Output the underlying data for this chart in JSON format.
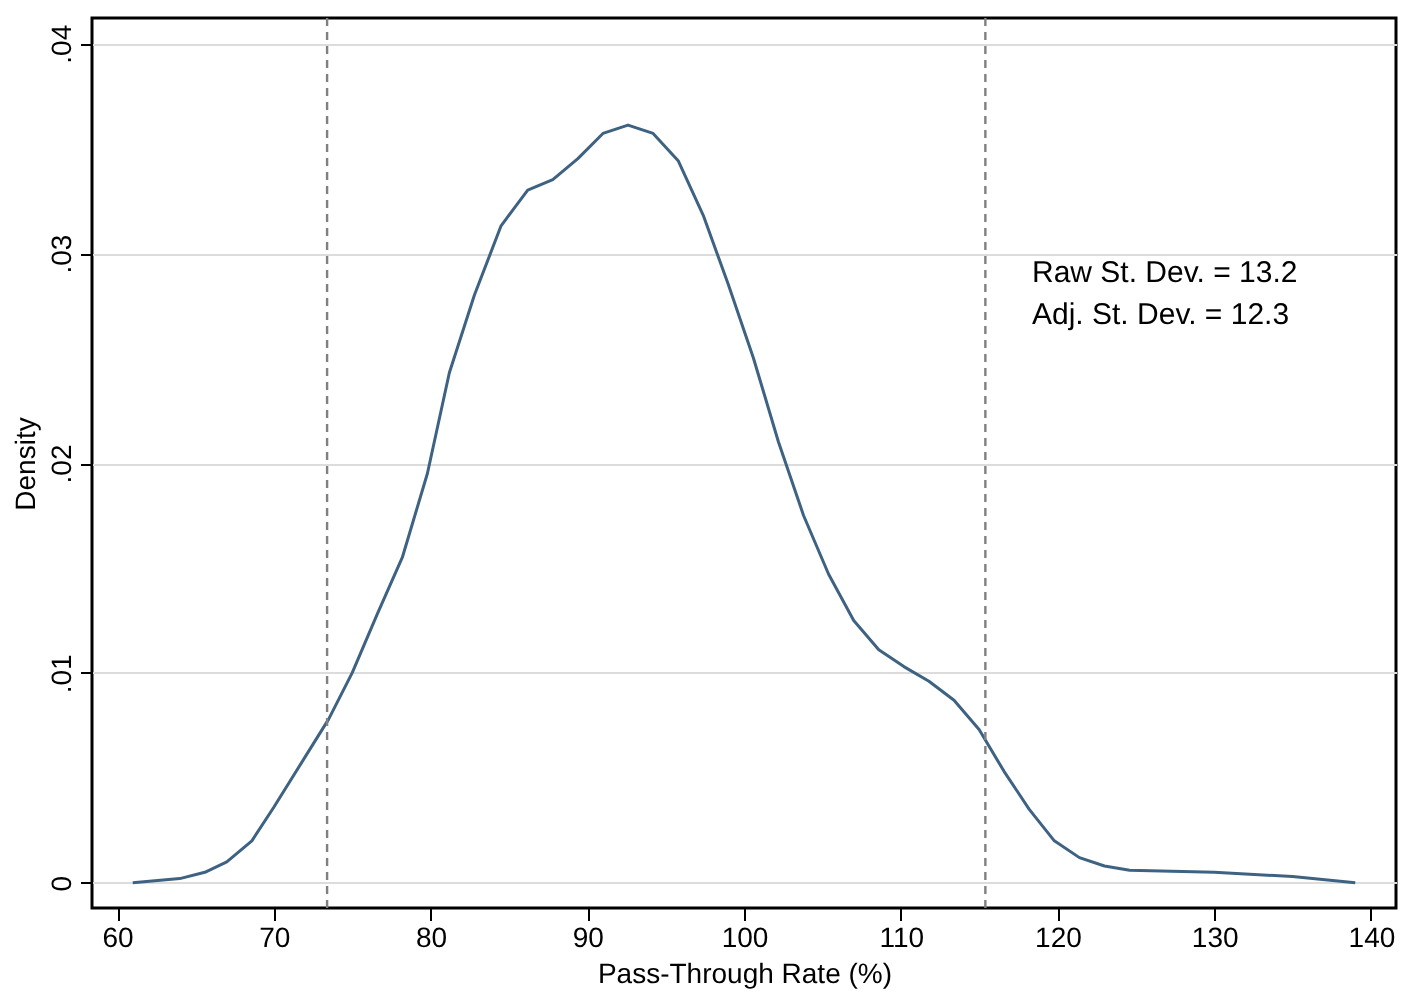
{
  "chart_data": {
    "type": "line",
    "xlabel": "Pass-Through Rate (%)",
    "ylabel": "Density",
    "x": [
      61,
      64,
      65.6,
      67,
      68.6,
      70,
      72,
      73.5,
      75,
      76.6,
      78.2,
      79.8,
      81.2,
      82.8,
      84.5,
      86.2,
      87.8,
      89.4,
      91,
      92.6,
      94.2,
      95.8,
      97.4,
      99,
      100.6,
      102.2,
      103.8,
      105.4,
      107,
      108.6,
      110.2,
      111.8,
      113.4,
      115,
      116.6,
      118.2,
      119.8,
      121.4,
      123,
      124.6,
      130,
      135,
      139
    ],
    "series": [
      {
        "color": "#3e6282",
        "values": [
          0,
          0.0002,
          0.0005,
          0.001,
          0.002,
          0.0036,
          0.006,
          0.0078,
          0.01,
          0.0128,
          0.0155,
          0.0195,
          0.0243,
          0.028,
          0.0313,
          0.033,
          0.0335,
          0.0345,
          0.0357,
          0.0361,
          0.0357,
          0.0344,
          0.0318,
          0.0285,
          0.025,
          0.021,
          0.0175,
          0.0147,
          0.0125,
          0.0111,
          0.0103,
          0.0096,
          0.0087,
          0.0073,
          0.0053,
          0.0035,
          0.002,
          0.0012,
          0.0008,
          0.0006,
          0.0005,
          0.0003,
          0
        ]
      }
    ],
    "xlim": [
      58.4,
      141.6
    ],
    "xticks": [
      60,
      70,
      80,
      90,
      100,
      110,
      120,
      130,
      140
    ],
    "ylim": [
      -0.0012,
      0.0412
    ],
    "yticks": [
      {
        "value": 0,
        "label": "0"
      },
      {
        "value": 0.01,
        "label": ".01"
      },
      {
        "value": 0.02,
        "label": ".02"
      },
      {
        "value": 0.03,
        "label": ".03"
      },
      {
        "value": 0.04,
        "label": ".04"
      }
    ],
    "grid": "y",
    "line_style": "solid",
    "ref_lines": [
      {
        "axis": "x",
        "value": 73.4,
        "color": "#808080",
        "line_style": "dashed"
      },
      {
        "axis": "x",
        "value": 115.4,
        "color": "#808080",
        "line_style": "dashed"
      }
    ],
    "annotations": [
      "Raw St. Dev. = 13.2",
      "Adj. St. Dev. = 12.3"
    ]
  }
}
